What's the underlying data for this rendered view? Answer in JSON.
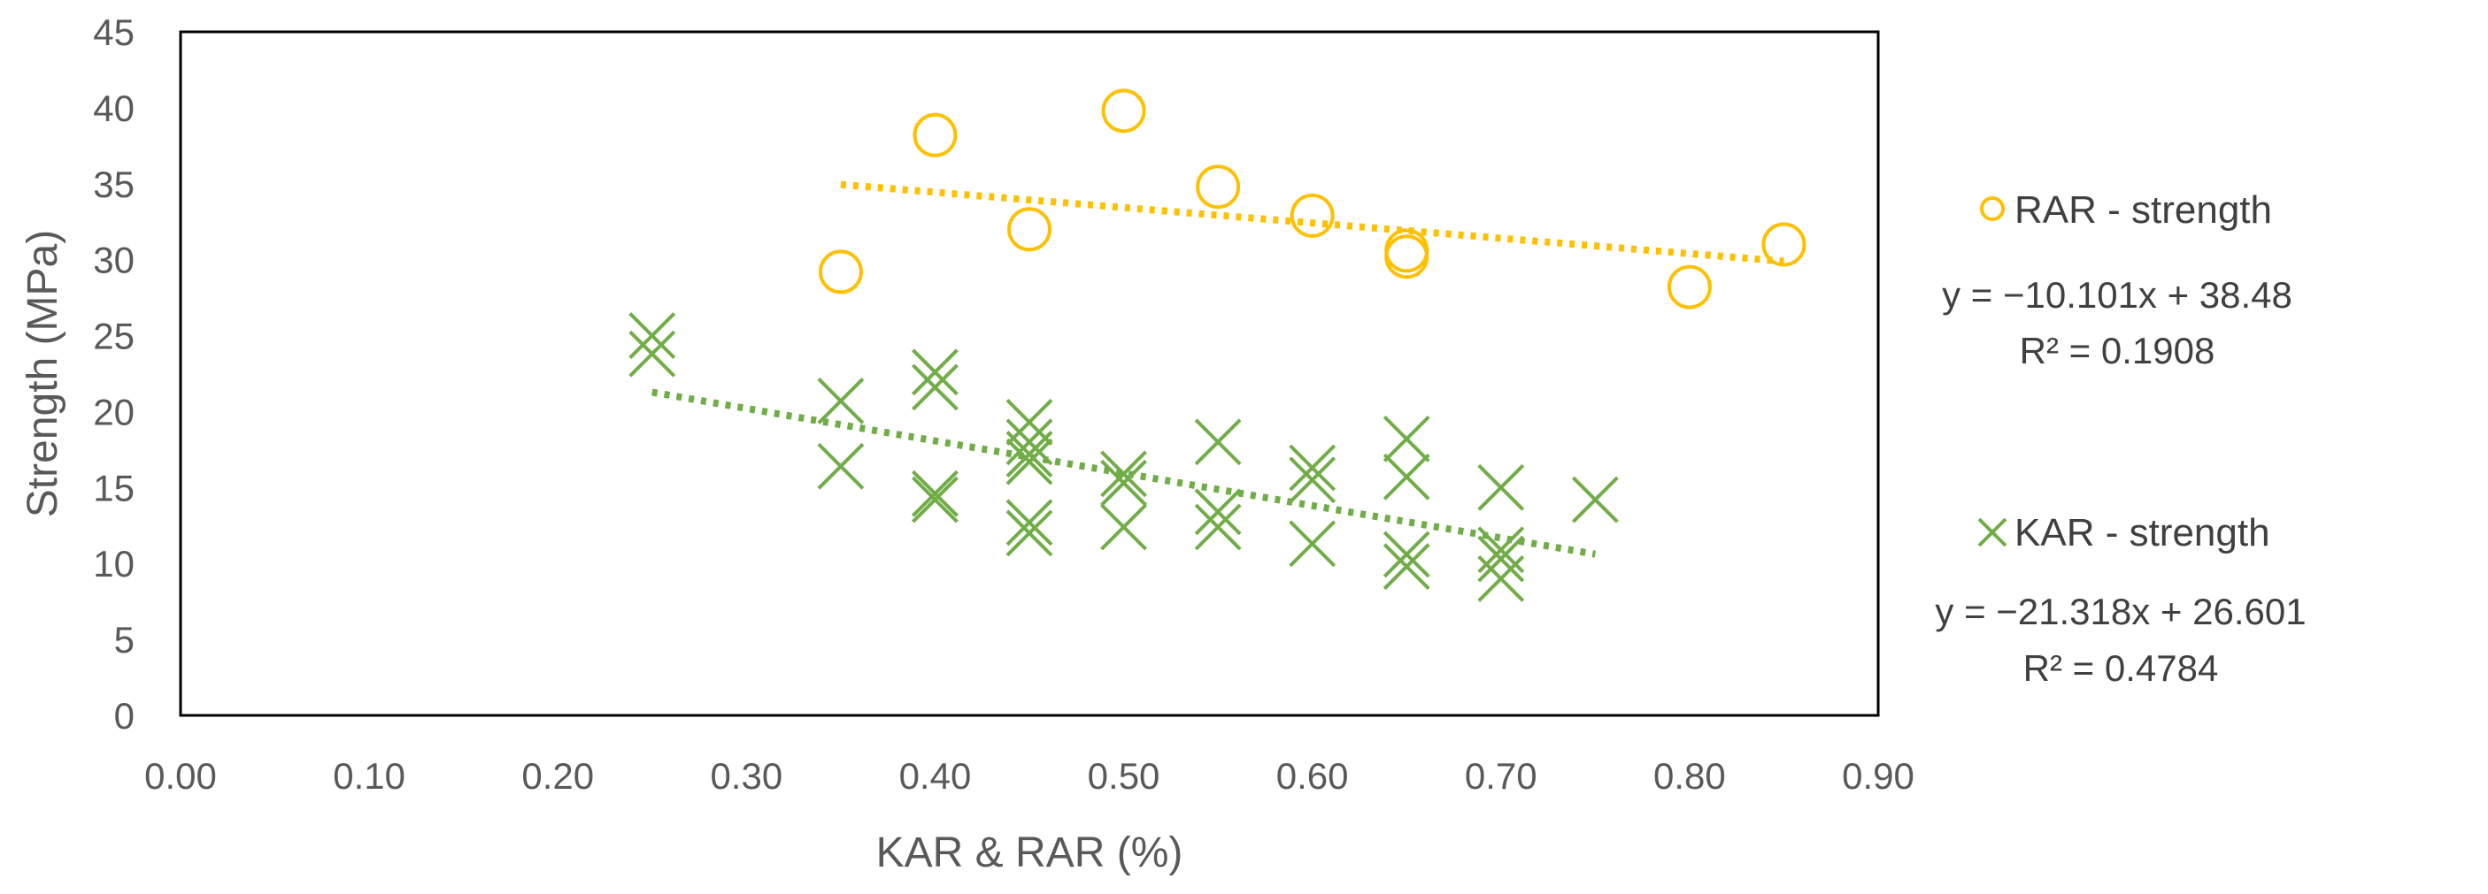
{
  "chart_data": {
    "type": "scatter",
    "title": "",
    "xlabel": "KAR & RAR (%)",
    "ylabel": "Strength (MPa)",
    "xlim": [
      0,
      0.9
    ],
    "ylim": [
      0,
      45
    ],
    "x_ticks": [
      0.0,
      0.1,
      0.2,
      0.3,
      0.4,
      0.5,
      0.6,
      0.7,
      0.8,
      0.9
    ],
    "x_tick_labels": [
      "0.00",
      "0.10",
      "0.20",
      "0.30",
      "0.40",
      "0.50",
      "0.60",
      "0.70",
      "0.80",
      "0.90"
    ],
    "y_ticks": [
      0,
      5,
      10,
      15,
      20,
      25,
      30,
      35,
      40,
      45
    ],
    "y_tick_labels": [
      "0",
      "5",
      "10",
      "15",
      "20",
      "25",
      "30",
      "35",
      "40",
      "45"
    ],
    "grid": false,
    "legend_position": "right",
    "series": [
      {
        "name": "RAR - strength",
        "marker": "circle",
        "color": "#FFC000",
        "points": [
          [
            0.35,
            29.2
          ],
          [
            0.4,
            38.2
          ],
          [
            0.45,
            32.0
          ],
          [
            0.5,
            39.8
          ],
          [
            0.55,
            34.8
          ],
          [
            0.6,
            32.9
          ],
          [
            0.65,
            30.6
          ],
          [
            0.65,
            30.2
          ],
          [
            0.8,
            28.2
          ],
          [
            0.85,
            31.0
          ]
        ],
        "trendline": {
          "slope": -10.101,
          "intercept": 38.48,
          "x_range": [
            0.35,
            0.85
          ],
          "equation": "y = −10.101x + 38.48",
          "r_squared": "R² = 0.1908"
        }
      },
      {
        "name": "KAR - strength",
        "marker": "x",
        "color": "#70AD47",
        "points": [
          [
            0.25,
            25.0
          ],
          [
            0.25,
            23.8
          ],
          [
            0.35,
            20.7
          ],
          [
            0.35,
            16.4
          ],
          [
            0.4,
            22.6
          ],
          [
            0.4,
            21.6
          ],
          [
            0.4,
            14.6
          ],
          [
            0.4,
            14.2
          ],
          [
            0.45,
            19.3
          ],
          [
            0.45,
            18.0
          ],
          [
            0.45,
            17.2
          ],
          [
            0.45,
            16.7
          ],
          [
            0.45,
            12.7
          ],
          [
            0.45,
            12.0
          ],
          [
            0.5,
            15.9
          ],
          [
            0.5,
            15.3
          ],
          [
            0.5,
            12.4
          ],
          [
            0.55,
            18.0
          ],
          [
            0.55,
            13.4
          ],
          [
            0.55,
            12.4
          ],
          [
            0.6,
            16.3
          ],
          [
            0.6,
            15.5
          ],
          [
            0.6,
            11.3
          ],
          [
            0.65,
            18.2
          ],
          [
            0.65,
            15.7
          ],
          [
            0.65,
            10.6
          ],
          [
            0.65,
            9.8
          ],
          [
            0.7,
            15.0
          ],
          [
            0.7,
            10.9
          ],
          [
            0.7,
            10.3
          ],
          [
            0.7,
            9.0
          ],
          [
            0.75,
            14.2
          ]
        ],
        "trendline": {
          "slope": -21.318,
          "intercept": 26.601,
          "x_range": [
            0.25,
            0.75
          ],
          "equation": "y = −21.318x + 26.601",
          "r_squared": "R² = 0.4784"
        }
      }
    ]
  }
}
